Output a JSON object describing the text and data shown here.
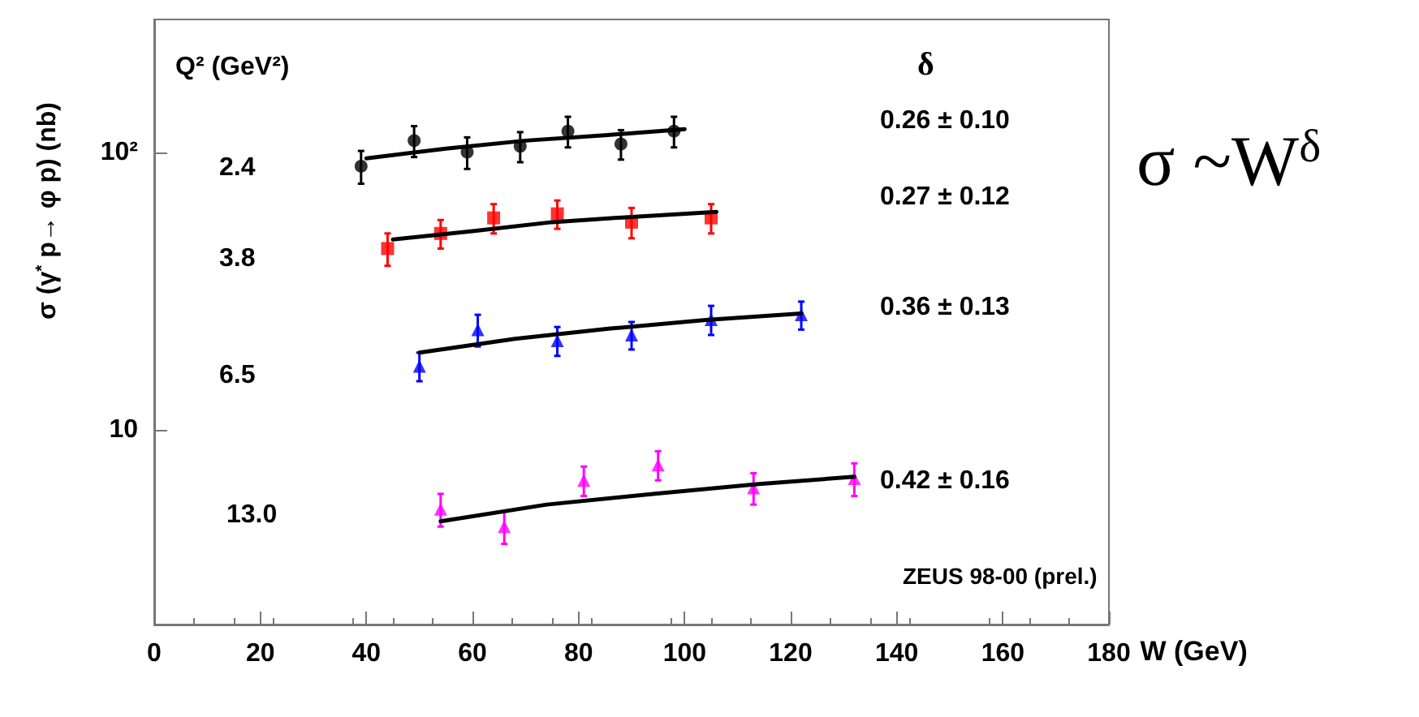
{
  "chart_data": {
    "type": "scatter",
    "xlabel": "W (GeV)",
    "ylabel": "σ (γ$^{*}$ p→ φ p) (nb)",
    "log": "y",
    "xlim": [
      0,
      180
    ],
    "xticks": [
      0,
      20,
      40,
      60,
      80,
      100,
      120,
      140,
      160,
      180
    ],
    "ylim": [
      2,
      300
    ],
    "yticks": [
      10,
      {
        "value": 100,
        "label": "10²"
      }
    ],
    "grid": false,
    "series": [
      {
        "color": "#000000",
        "marker": "circle",
        "x": [
          39,
          49,
          59,
          69,
          78,
          88,
          98
        ],
        "values": [
          89,
          110,
          100,
          105,
          119,
          107,
          119
        ],
        "errors": [
          12,
          14,
          13,
          13,
          15,
          13,
          15
        ]
      },
      {
        "color": "#ff0000",
        "marker": "square",
        "x": [
          44,
          54,
          64,
          76,
          90,
          105
        ],
        "values": [
          45,
          51,
          58,
          60,
          56,
          58
        ],
        "errors": [
          6,
          6,
          7,
          7,
          7,
          7
        ]
      },
      {
        "color": "#0000ff",
        "marker": "triangle",
        "x": [
          50,
          61,
          76,
          90,
          105,
          122
        ],
        "values": [
          17,
          23,
          21,
          22,
          25,
          26
        ],
        "errors": [
          2,
          3,
          2.5,
          2.5,
          3,
          3
        ]
      },
      {
        "color": "#ff00ff",
        "marker": "triangle",
        "x": [
          54,
          66,
          81,
          95,
          113,
          132
        ],
        "values": [
          5.2,
          4.5,
          6.6,
          7.5,
          6.2,
          6.7
        ],
        "errors": [
          0.7,
          0.6,
          0.8,
          0.9,
          0.8,
          0.9
        ]
      },
      {
        "type": "line",
        "color": "#000000",
        "marker": "none",
        "x": [
          40,
          55,
          70,
          85,
          100
        ],
        "values": [
          95,
          103,
          110,
          115,
          121
        ]
      },
      {
        "type": "line",
        "color": "#000000",
        "marker": "none",
        "x": [
          45,
          60,
          75,
          90,
          106
        ],
        "values": [
          48.5,
          52,
          56,
          58.5,
          61
        ]
      },
      {
        "type": "line",
        "color": "#000000",
        "marker": "none",
        "x": [
          50,
          68,
          86,
          104,
          122
        ],
        "values": [
          19,
          21.3,
          23.2,
          24.9,
          26.3
        ]
      },
      {
        "type": "line",
        "color": "#000000",
        "marker": "none",
        "x": [
          54,
          74,
          94,
          114,
          132
        ],
        "values": [
          4.7,
          5.4,
          5.9,
          6.4,
          6.8
        ]
      }
    ],
    "annotations": [
      "Q² (GeV²)",
      "2.4",
      "3.8",
      "6.5",
      "13.0",
      "δ",
      "0.26 ± 0.10",
      "0.27 ± 0.12",
      "0.36 ± 0.13",
      "0.42 ± 0.16",
      "ZEUS 98-00 (prel.)",
      "σ ~W$^{δ}$"
    ]
  }
}
